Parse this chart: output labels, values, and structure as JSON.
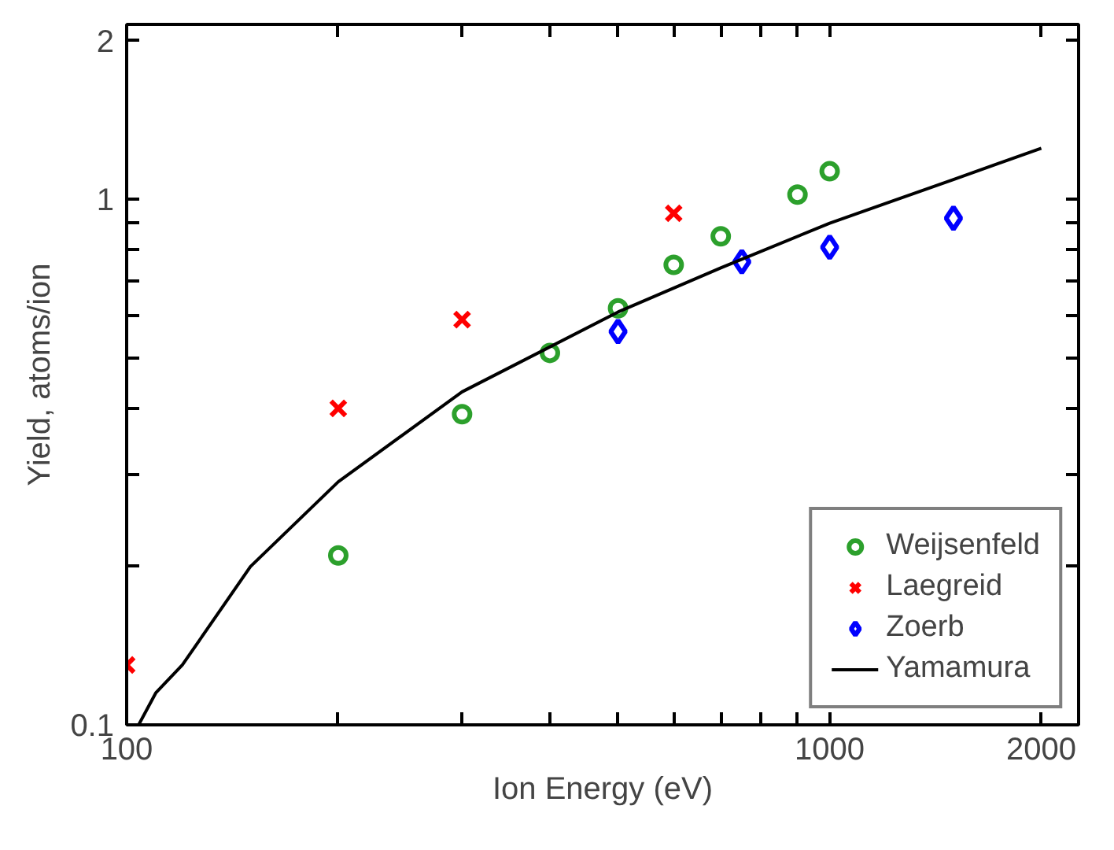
{
  "chart_data": {
    "type": "scatter",
    "xlabel": "Ion Energy (eV)",
    "ylabel": "Yield, atoms/ion",
    "log": "xy",
    "grid": false,
    "legend": "bottom right",
    "xlim": [
      100,
      2260
    ],
    "ylim": [
      0.1,
      2.15
    ],
    "xticks": [
      100,
      {
        "value": 200,
        "label": null
      },
      {
        "value": 300,
        "label": null
      },
      {
        "value": 400,
        "label": null
      },
      {
        "value": 500,
        "label": null
      },
      {
        "value": 600,
        "label": null
      },
      {
        "value": 700,
        "label": null
      },
      {
        "value": 800,
        "label": null
      },
      {
        "value": 900,
        "label": null
      },
      1000,
      2000
    ],
    "yticks": [
      0.1,
      {
        "value": 0.2,
        "label": null
      },
      {
        "value": 0.3,
        "label": null
      },
      {
        "value": 0.4,
        "label": null
      },
      {
        "value": 0.5,
        "label": null
      },
      {
        "value": 0.6,
        "label": null
      },
      {
        "value": 0.7,
        "label": null
      },
      {
        "value": 0.8,
        "label": null
      },
      {
        "value": 0.9,
        "label": null
      },
      1,
      2
    ],
    "series": [
      {
        "name": "Weijsenfeld",
        "marker": "circle",
        "color": "#2ca02c",
        "x": [
          200,
          300,
          400,
          500,
          600,
          700,
          900,
          1000
        ],
        "values": [
          0.21,
          0.39,
          0.51,
          0.62,
          0.75,
          0.85,
          1.02,
          1.13
        ]
      },
      {
        "name": "Laegreid",
        "marker": "cross",
        "color": "#ff0000",
        "x": [
          100,
          200,
          300,
          600
        ],
        "values": [
          0.13,
          0.4,
          0.59,
          0.94
        ]
      },
      {
        "name": "Zoerb",
        "marker": "diamond",
        "color": "#0000ff",
        "x": [
          500,
          750,
          1000,
          1500
        ],
        "values": [
          0.56,
          0.76,
          0.81,
          0.92
        ]
      },
      {
        "name": "Yamamura",
        "type": "line",
        "marker": "none",
        "color": "#000000",
        "x": [
          104,
          110,
          120,
          150,
          200,
          300,
          500,
          700,
          1000,
          1500,
          2000
        ],
        "values": [
          0.1,
          0.115,
          0.13,
          0.2,
          0.29,
          0.43,
          0.61,
          0.74,
          0.9,
          1.09,
          1.25
        ]
      }
    ]
  }
}
